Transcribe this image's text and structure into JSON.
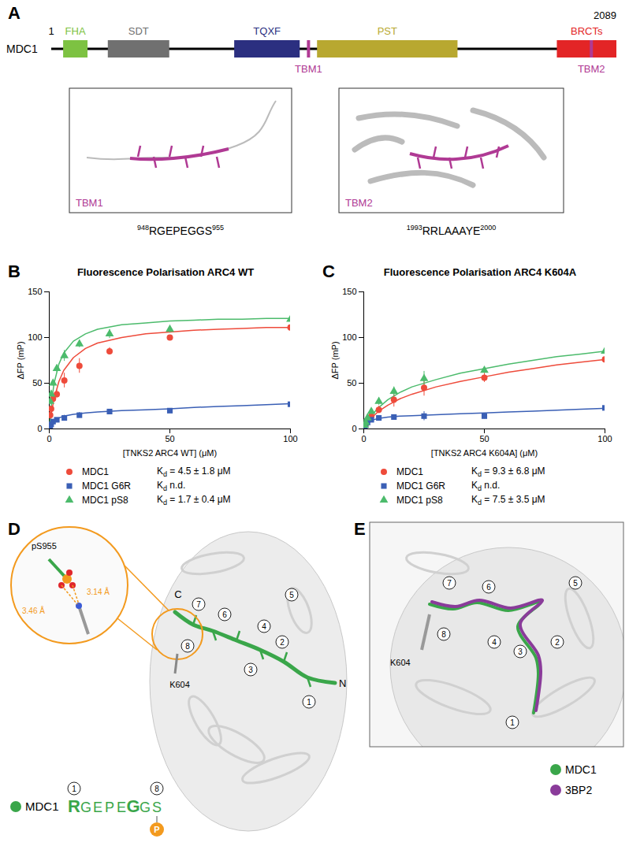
{
  "panel_a": {
    "panel": "A",
    "protein": "MDC1",
    "start": 1,
    "end": 2089,
    "domains": [
      {
        "name": "FHA",
        "start": 45,
        "end": 135,
        "color": "#7dc242"
      },
      {
        "name": "SDT",
        "start": 210,
        "end": 437,
        "color": "#707070"
      },
      {
        "name": "TQXF",
        "start": 677,
        "end": 919,
        "color": "#2b2f80"
      },
      {
        "name": "PST",
        "start": 983,
        "end": 1502,
        "color": "#b8a830"
      },
      {
        "name": "BRCTs",
        "start": 1869,
        "end": 2089,
        "color": "#e32526"
      }
    ],
    "motifs": [
      {
        "name": "TBM1",
        "start": 948,
        "end": 955,
        "sequence": "RGEPEGGS",
        "color": "#b03a94"
      },
      {
        "name": "TBM2",
        "start": 1993,
        "end": 2000,
        "sequence": "RRLAAAYE",
        "color": "#b03a94"
      }
    ]
  },
  "chart_data": [
    {
      "panel": "B",
      "type": "scatter",
      "title": "Fluorescence Polarisation ARC4 WT",
      "x_label": "[TNKS2 ARC4 WT] (μM)",
      "y_label": "ΔFP (mP)",
      "xlim": [
        0,
        100
      ],
      "xticks": [
        0,
        50,
        100
      ],
      "ylim": [
        0,
        150
      ],
      "yticks": [
        0,
        50,
        100,
        150
      ],
      "kd_symbol": "K",
      "kd_subscript": "d",
      "x": [
        0.39,
        0.78,
        1.56,
        3.125,
        6.25,
        12.5,
        25,
        50,
        100
      ],
      "fit_x": [
        0,
        1,
        2,
        4,
        6,
        10,
        15,
        20,
        30,
        40,
        50,
        60,
        70,
        80,
        90,
        100
      ],
      "series": [
        {
          "name": "MDC1",
          "color": "#ee4b3b",
          "marker": "circle",
          "kd": "= 4.5 ± 1.8 μM",
          "values": [
            15,
            22,
            33,
            38,
            53,
            69,
            85,
            100,
            111
          ],
          "error": [
            2,
            3,
            3,
            4,
            8,
            8,
            4,
            2,
            4
          ],
          "fit": [
            0,
            19.5,
            33,
            52,
            64,
            78,
            88,
            94,
            100,
            104,
            106,
            108,
            109,
            110,
            111,
            111
          ]
        },
        {
          "name": "MDC1 G6R",
          "color": "#3a5fb5",
          "marker": "square",
          "kd": "n.d.",
          "values": [
            2,
            5,
            8,
            10,
            12,
            15,
            19,
            20,
            27
          ],
          "error": [
            1,
            1,
            2,
            2,
            3,
            3,
            2,
            1,
            1
          ],
          "fit": [
            0,
            6,
            9,
            12,
            14,
            16,
            17.5,
            18.5,
            20,
            21,
            22,
            23.5,
            24.5,
            25.5,
            26.5,
            27.5
          ]
        },
        {
          "name": "MDC1 pS8",
          "color": "#4cbb6c",
          "marker": "triangle",
          "kd": "= 1.7 ± 0.4 μM",
          "values": [
            30,
            38,
            50,
            66,
            80,
            93,
            104,
            109,
            120
          ],
          "error": [
            2,
            3,
            3,
            4,
            6,
            4,
            5,
            4,
            2
          ],
          "fit": [
            0,
            31,
            50,
            71,
            83,
            96,
            104,
            109,
            114,
            116,
            118,
            119,
            120,
            120,
            121,
            121
          ]
        }
      ]
    },
    {
      "panel": "C",
      "type": "scatter",
      "title": "Fluorescence Polarisation ARC4 K604A",
      "x_label": "[TNKS2 ARC4 K604A] (μM)",
      "y_label": "ΔFP (mP)",
      "xlim": [
        0,
        100
      ],
      "xticks": [
        0,
        50,
        100
      ],
      "ylim": [
        0,
        150
      ],
      "yticks": [
        0,
        50,
        100,
        150
      ],
      "kd_symbol": "K",
      "kd_subscript": "d",
      "x": [
        0.39,
        0.78,
        1.56,
        3.125,
        6.25,
        12.5,
        25,
        50,
        100
      ],
      "fit_x": [
        0,
        1,
        2,
        4,
        6,
        10,
        15,
        20,
        30,
        40,
        50,
        60,
        70,
        80,
        90,
        100
      ],
      "series": [
        {
          "name": "MDC1",
          "color": "#ee4b3b",
          "marker": "circle",
          "kd": "= 9.3 ± 6.8 μM",
          "values": [
            3,
            5,
            9,
            14,
            21,
            32,
            45,
            56,
            76
          ],
          "error": [
            1,
            2,
            2,
            3,
            4,
            8,
            9,
            5,
            5
          ],
          "fit": [
            0,
            4,
            8,
            14,
            19,
            26,
            33,
            38,
            46,
            52,
            57,
            62,
            66,
            70,
            73,
            76
          ]
        },
        {
          "name": "MDC1 G6R",
          "color": "#3a5fb5",
          "marker": "square",
          "kd": "n.d.",
          "values": [
            2,
            4,
            7,
            10,
            12,
            13,
            14,
            14,
            23
          ],
          "error": [
            1,
            1,
            1,
            2,
            2,
            2,
            5,
            3,
            2
          ],
          "fit": [
            0,
            4,
            7,
            10,
            11.5,
            13,
            14,
            14.5,
            15.5,
            16.5,
            17.5,
            18.5,
            19.5,
            20.5,
            21.5,
            22.5
          ]
        },
        {
          "name": "MDC1 pS8",
          "color": "#4cbb6c",
          "marker": "triangle",
          "kd": "= 7.5 ± 3.5 μM",
          "values": [
            4,
            7,
            12,
            19,
            30,
            41,
            55,
            64,
            85
          ],
          "error": [
            1,
            2,
            2,
            3,
            4,
            5,
            8,
            3,
            4
          ],
          "fit": [
            0,
            5,
            10,
            17,
            23,
            32,
            40,
            46,
            54,
            61,
            66,
            71,
            75,
            79,
            82,
            85
          ]
        }
      ]
    }
  ],
  "panel_d": {
    "panel": "D",
    "chain_termini": [
      "N",
      "C"
    ],
    "residue_labels": [
      "1",
      "2",
      "3",
      "4",
      "5",
      "6",
      "7",
      "8"
    ],
    "zoom": {
      "residue": "pS955",
      "partner": "K604",
      "distances": [
        "3.46 Å",
        "3.14 Å"
      ],
      "color": "#f39a1e"
    },
    "legend": {
      "name": "MDC1",
      "color": "#3aa64a",
      "sequence": "RGEPEGGS",
      "bold_positions": [
        1,
        6
      ],
      "numbered_positions": [
        1,
        8
      ],
      "modification": "P",
      "modification_color": "#f39a1e"
    }
  },
  "panel_e": {
    "panel": "E",
    "residue_labels": [
      "1",
      "2",
      "3",
      "4",
      "5",
      "6",
      "7",
      "8"
    ],
    "partner": "K604",
    "legend": [
      {
        "name": "MDC1",
        "color": "#3aa64a"
      },
      {
        "name": "3BP2",
        "color": "#8a3b9a"
      }
    ]
  }
}
